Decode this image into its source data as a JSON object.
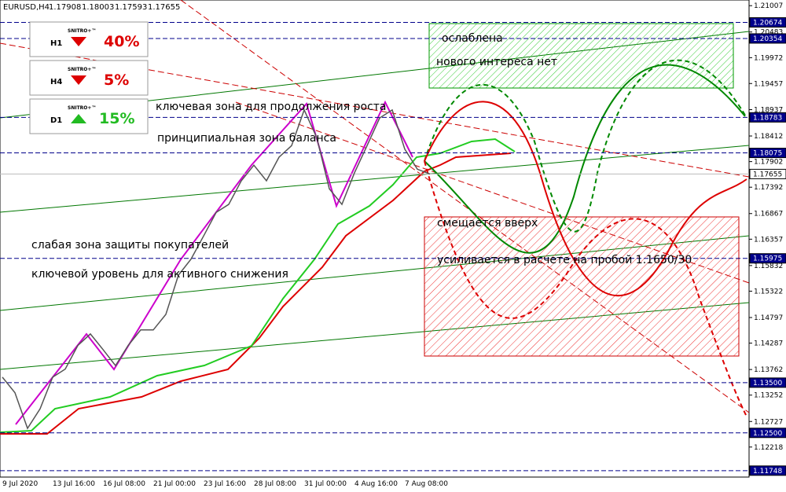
{
  "chart_data": {
    "type": "line",
    "title": "EURUSD,H4",
    "ohlc": [
      1.17908,
      1.18003,
      1.17593,
      1.17655
    ],
    "categories": [
      "9 Jul 2020",
      null,
      null,
      null,
      "13 Jul 16:00",
      null,
      null,
      null,
      "16 Jul 08:00",
      null,
      null,
      null,
      "21 Jul 00:00",
      null,
      null,
      null,
      "23 Jul 16:00",
      null,
      null,
      null,
      "28 Jul 08:00",
      null,
      null,
      null,
      "31 Jul 00:00",
      null,
      null,
      null,
      "4 Aug 16:00",
      null,
      null,
      null,
      "7 Aug 08:00",
      null,
      null
    ],
    "series": [
      {
        "name": "EURUSD",
        "color": "#555555",
        "values": [
          1.1361,
          1.133,
          1.1259,
          1.1298,
          1.1361,
          1.1377,
          1.1424,
          1.1447,
          1.1416,
          1.1384,
          1.1424,
          1.1455,
          1.1455,
          1.1486,
          1.1564,
          1.1596,
          1.1642,
          1.1689,
          1.1705,
          1.1752,
          1.1783,
          1.1752,
          1.1799,
          1.1822,
          1.1893,
          1.1838,
          1.1736,
          1.1705,
          1.1768,
          1.1822,
          1.1877,
          1.1893,
          1.1815,
          1.1775,
          1.17655
        ]
      }
    ],
    "ylim": [
      1.1162,
      1.2112
    ],
    "yticks": [
      1.21007,
      1.20483,
      1.19972,
      1.19457,
      1.18937,
      1.18412,
      1.17902,
      1.17392,
      1.16867,
      1.16357,
      1.15832,
      1.15322,
      1.14797,
      1.14287,
      1.13762,
      1.13252,
      1.12727,
      1.12218
    ],
    "levels": [
      1.20674,
      1.20354,
      1.18783,
      1.18075,
      1.17655,
      1.15975,
      {
        "value": 1.135,
        "label": "1.13500"
      },
      {
        "value": 1.125,
        "label": "1.12500"
      },
      1.11748
    ],
    "panels": [
      {
        "brand": "SNITRO+™",
        "timeframe": "H1",
        "strength": "40%",
        "direction": "down"
      },
      {
        "brand": "SNITRO+™",
        "timeframe": "H4",
        "strength": "5%",
        "direction": "down"
      },
      {
        "brand": "SNITRO+™",
        "timeframe": "D1",
        "strength": "15%",
        "direction": "up"
      }
    ],
    "annotations": [
      "ослаблена",
      "нового интереса нет",
      "ключевая зона для продолжения роста",
      "принципиальная зона баланса",
      "слабая зона защиты покупателей",
      "ключевой уровень для активного снижения",
      "смещается вверх",
      "усиливается в расчете на пробой 1.1650/30"
    ]
  }
}
